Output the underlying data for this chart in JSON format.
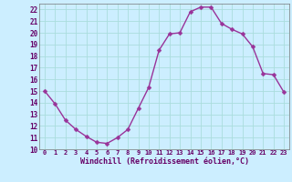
{
  "x": [
    0,
    1,
    2,
    3,
    4,
    5,
    6,
    7,
    8,
    9,
    10,
    11,
    12,
    13,
    14,
    15,
    16,
    17,
    18,
    19,
    20,
    21,
    22,
    23
  ],
  "y": [
    15,
    13.9,
    12.5,
    11.7,
    11.1,
    10.6,
    10.5,
    11.0,
    11.7,
    13.5,
    15.3,
    18.5,
    19.9,
    20.0,
    21.8,
    22.2,
    22.2,
    20.8,
    20.3,
    19.9,
    18.8,
    16.5,
    16.4,
    14.9
  ],
  "line_color": "#993399",
  "marker": "D",
  "markersize": 2.5,
  "linewidth": 1.0,
  "bg_color": "#cceeff",
  "grid_color": "#aadddd",
  "xlabel": "Windchill (Refroidissement éolien,°C)",
  "xlabel_color": "#660066",
  "tick_color": "#660066",
  "ylim": [
    10,
    22.5
  ],
  "xlim": [
    -0.5,
    23.5
  ],
  "yticks": [
    10,
    11,
    12,
    13,
    14,
    15,
    16,
    17,
    18,
    19,
    20,
    21,
    22
  ],
  "xticks": [
    0,
    1,
    2,
    3,
    4,
    5,
    6,
    7,
    8,
    9,
    10,
    11,
    12,
    13,
    14,
    15,
    16,
    17,
    18,
    19,
    20,
    21,
    22,
    23
  ]
}
